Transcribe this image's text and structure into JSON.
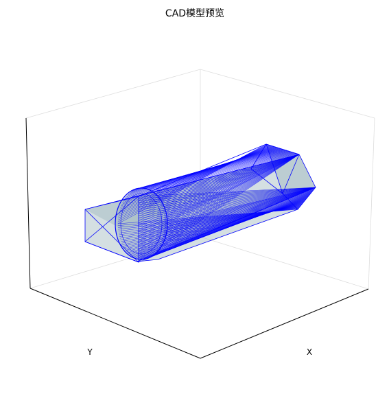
{
  "title": "CAD模型预览",
  "axes": {
    "x_label": "X",
    "y_label": "Y",
    "z_label": ""
  },
  "colors": {
    "edge": "#0000ff",
    "face": "#9fb8bf",
    "pane_edge": "#dddddd",
    "axis_line": "#000000"
  }
}
